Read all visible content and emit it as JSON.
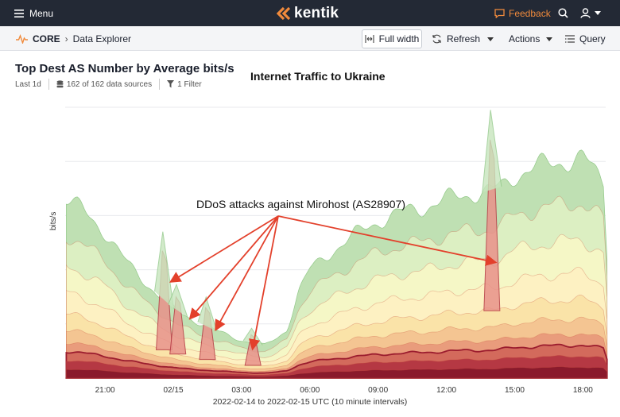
{
  "header": {
    "menu_label": "Menu",
    "brand": "kentik",
    "feedback_label": "Feedback"
  },
  "breadcrumb": {
    "app": "CORE",
    "page": "Data Explorer"
  },
  "toolbar": {
    "full_width_label": "Full width",
    "refresh_label": "Refresh",
    "actions_label": "Actions",
    "query_label": "Query"
  },
  "panel": {
    "title": "Top Dest AS Number by Average bits/s",
    "time_range": "Last 1d",
    "sources": "162 of 162 data sources",
    "filters": "1 Filter"
  },
  "annotations": {
    "heading": "Internet Traffic to Ukraine",
    "ddos": "DDoS attacks against Mirohost (AS28907)"
  },
  "chart_data": {
    "type": "area",
    "stacked": true,
    "ylabel": "bits/s",
    "xlabel": "2022-02-14 to 2022-02-15 UTC (10 minute intervals)",
    "x_ticks": [
      "21:00",
      "02/15",
      "03:00",
      "06:00",
      "09:00",
      "12:00",
      "15:00",
      "18:00"
    ],
    "x_range_hours": [
      19.25,
      20.75
    ],
    "y_ticks_labeled": false,
    "grid": true,
    "total_profile": [
      [
        19.3,
        0.66
      ],
      [
        20.0,
        0.62
      ],
      [
        21.0,
        0.54
      ],
      [
        22.0,
        0.42
      ],
      [
        23.3,
        0.31
      ],
      [
        23.6,
        0.29
      ],
      [
        23.8,
        0.27
      ],
      [
        24.3,
        0.24
      ],
      [
        25.0,
        0.21
      ],
      [
        26.0,
        0.17
      ],
      [
        27.0,
        0.14
      ],
      [
        28.0,
        0.12
      ],
      [
        28.6,
        0.15
      ],
      [
        29.0,
        0.18
      ],
      [
        29.5,
        0.32
      ],
      [
        30.0,
        0.4
      ],
      [
        31.0,
        0.47
      ],
      [
        32.0,
        0.53
      ],
      [
        33.0,
        0.58
      ],
      [
        34.0,
        0.61
      ],
      [
        35.0,
        0.63
      ],
      [
        36.0,
        0.66
      ],
      [
        37.0,
        0.68
      ],
      [
        38.0,
        0.69
      ],
      [
        38.5,
        0.71
      ],
      [
        39.0,
        0.75
      ],
      [
        40.0,
        0.78
      ],
      [
        41.0,
        0.8
      ],
      [
        42.0,
        0.81
      ],
      [
        42.9,
        0.73
      ],
      [
        43.1,
        0.4
      ]
    ],
    "ddos_spikes": [
      {
        "x": 23.6,
        "peak": 0.47
      },
      {
        "x": 24.2,
        "peak": 0.3
      },
      {
        "x": 25.5,
        "peak": 0.26
      },
      {
        "x": 27.5,
        "peak": 0.16
      },
      {
        "x": 38.0,
        "peak": 0.88
      }
    ],
    "layer_colors": [
      "#8a1a2c",
      "#b53843",
      "#d36a5c",
      "#e99c7c",
      "#f4c592",
      "#fae3a8",
      "#fdf1c2",
      "#f5f7c6",
      "#dcefc2",
      "#bfe0b3"
    ]
  },
  "colors": {
    "topbar": "#232935",
    "accent": "#f08a3c",
    "annotation_arrow": "#e3402b"
  }
}
